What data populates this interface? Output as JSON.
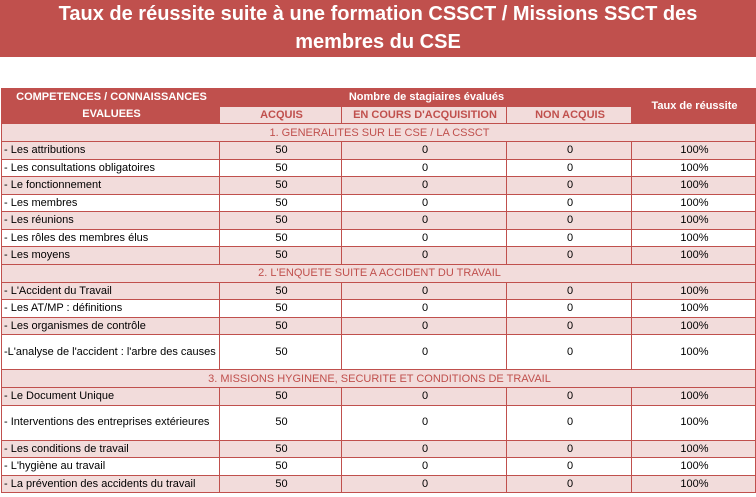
{
  "title": {
    "line1": "Taux de réussite suite à une formation CSSCT / Missions SSCT des",
    "line2": "membres du CSE"
  },
  "header": {
    "competences": "COMPETENCES / CONNAISSANCES EVALUEES",
    "nombre": "Nombre de stagiaires évalués",
    "acquis": "ACQUIS",
    "en_cours": "EN COURS D'ACQUISITION",
    "non_acquis": "NON ACQUIS",
    "taux": "Taux de réussite"
  },
  "sections": [
    {
      "title": "1. GENERALITES SUR LE CSE / LA CSSCT",
      "rows": [
        {
          "label": "- Les attributions",
          "acquis": "50",
          "en_cours": "0",
          "non_acquis": "0",
          "taux": "100%"
        },
        {
          "label": "- Les consultations obligatoires",
          "acquis": "50",
          "en_cours": "0",
          "non_acquis": "0",
          "taux": "100%"
        },
        {
          "label": "- Le fonctionnement",
          "acquis": "50",
          "en_cours": "0",
          "non_acquis": "0",
          "taux": "100%"
        },
        {
          "label": "- Les membres",
          "acquis": "50",
          "en_cours": "0",
          "non_acquis": "0",
          "taux": "100%"
        },
        {
          "label": "- Les réunions",
          "acquis": "50",
          "en_cours": "0",
          "non_acquis": "0",
          "taux": "100%"
        },
        {
          "label": "- Les rôles des membres élus",
          "acquis": "50",
          "en_cours": "0",
          "non_acquis": "0",
          "taux": "100%"
        },
        {
          "label": "- Les moyens",
          "acquis": "50",
          "en_cours": "0",
          "non_acquis": "0",
          "taux": "100%"
        }
      ]
    },
    {
      "title": "2. L'ENQUETE SUITE A ACCIDENT DU TRAVAIL",
      "rows": [
        {
          "label": "- L'Accident du Travail",
          "acquis": "50",
          "en_cours": "0",
          "non_acquis": "0",
          "taux": "100%"
        },
        {
          "label": "- Les AT/MP : définitions",
          "acquis": "50",
          "en_cours": "0",
          "non_acquis": "0",
          "taux": "100%"
        },
        {
          "label": "- Les organismes de contrôle",
          "acquis": "50",
          "en_cours": "0",
          "non_acquis": "0",
          "taux": "100%"
        },
        {
          "label": "-L'analyse de l'accident : l'arbre des causes",
          "acquis": "50",
          "en_cours": "0",
          "non_acquis": "0",
          "taux": "100%"
        }
      ]
    },
    {
      "title": "3. MISSIONS HYGINENE, SECURITE ET CONDITIONS DE TRAVAIL",
      "rows": [
        {
          "label": "- Le Document Unique",
          "acquis": "50",
          "en_cours": "0",
          "non_acquis": "0",
          "taux": "100%"
        },
        {
          "label": "- Interventions des entreprises extérieures",
          "acquis": "50",
          "en_cours": "0",
          "non_acquis": "0",
          "taux": "100%"
        },
        {
          "label": "- Les conditions de travail",
          "acquis": "50",
          "en_cours": "0",
          "non_acquis": "0",
          "taux": "100%"
        },
        {
          "label": "- L'hygiène au travail",
          "acquis": "50",
          "en_cours": "0",
          "non_acquis": "0",
          "taux": "100%"
        },
        {
          "label": "- La prévention des accidents du travail",
          "acquis": "50",
          "en_cours": "0",
          "non_acquis": "0",
          "taux": "100%"
        }
      ]
    }
  ]
}
